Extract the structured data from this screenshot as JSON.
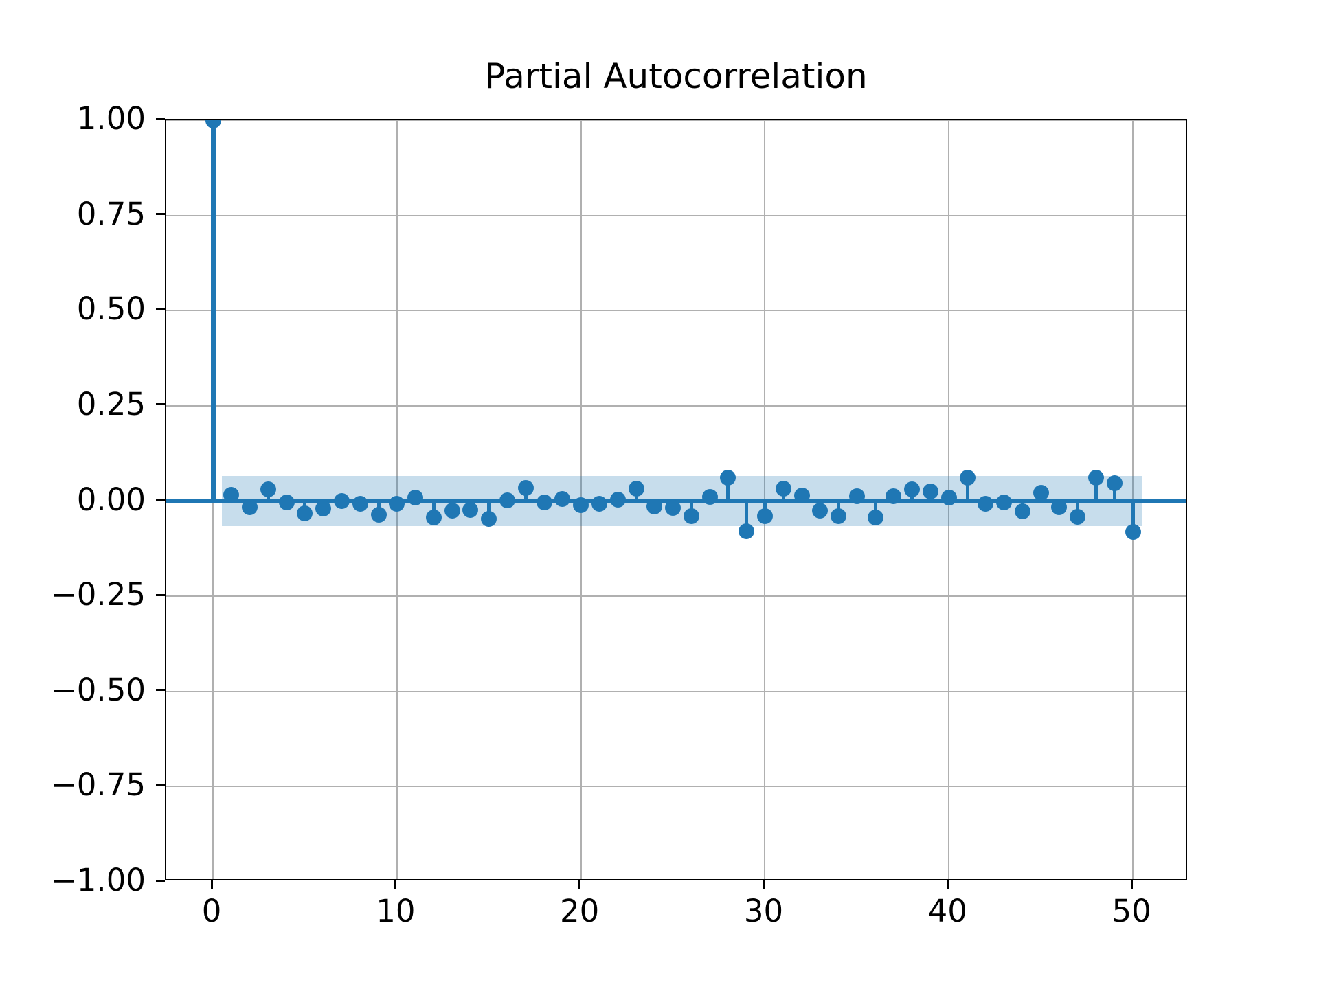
{
  "chart_data": {
    "type": "stem",
    "title": "Partial Autocorrelation",
    "x": [
      0,
      1,
      2,
      3,
      4,
      5,
      6,
      7,
      8,
      9,
      10,
      11,
      12,
      13,
      14,
      15,
      16,
      17,
      18,
      19,
      20,
      21,
      22,
      23,
      24,
      25,
      26,
      27,
      28,
      29,
      30,
      31,
      32,
      33,
      34,
      35,
      36,
      37,
      38,
      39,
      40,
      41,
      42,
      43,
      44,
      45,
      46,
      47,
      48,
      49,
      50
    ],
    "values": [
      1.0,
      0.016,
      -0.017,
      0.031,
      -0.004,
      -0.033,
      -0.019,
      0.0,
      -0.008,
      -0.036,
      -0.007,
      0.009,
      -0.043,
      -0.026,
      -0.024,
      -0.047,
      0.002,
      0.035,
      -0.004,
      0.005,
      -0.011,
      -0.007,
      0.003,
      0.033,
      -0.014,
      -0.018,
      -0.04,
      0.011,
      0.062,
      -0.079,
      -0.04,
      0.032,
      0.014,
      -0.025,
      -0.04,
      0.012,
      -0.043,
      0.012,
      0.03,
      0.026,
      0.009,
      0.061,
      -0.007,
      -0.003,
      -0.027,
      0.022,
      -0.017,
      -0.041,
      0.061,
      0.047,
      -0.082
    ],
    "xlabel": "",
    "ylabel": "",
    "xlim": [
      -2.54,
      53.02
    ],
    "ylim": [
      -1.0,
      1.0
    ],
    "x_ticks": [
      {
        "v": 0,
        "label": "0"
      },
      {
        "v": 10,
        "label": "10"
      },
      {
        "v": 20,
        "label": "20"
      },
      {
        "v": 30,
        "label": "30"
      },
      {
        "v": 40,
        "label": "40"
      },
      {
        "v": 50,
        "label": "50"
      }
    ],
    "y_ticks": [
      {
        "v": 1.0,
        "label": "1.00"
      },
      {
        "v": 0.75,
        "label": "0.75"
      },
      {
        "v": 0.5,
        "label": "0.50"
      },
      {
        "v": 0.25,
        "label": "0.25"
      },
      {
        "v": 0.0,
        "label": "0.00"
      },
      {
        "v": -0.25,
        "label": "−0.25"
      },
      {
        "v": -0.5,
        "label": "−0.50"
      },
      {
        "v": -0.75,
        "label": "−0.75"
      },
      {
        "v": -1.0,
        "label": "−1.00"
      }
    ],
    "confidence_band": {
      "low": -0.065,
      "high": 0.065,
      "x_start": 0.5,
      "x_end": 50.5,
      "alpha": 0.25
    },
    "zero_line": 0.0,
    "grid": true,
    "legend": null,
    "colors": {
      "stem": "#1f77b4",
      "marker": "#1f77b4",
      "band": "#1f77b4",
      "grid": "#b0b0b0",
      "spine": "#000000",
      "text": "#000000",
      "background": "#ffffff"
    }
  }
}
